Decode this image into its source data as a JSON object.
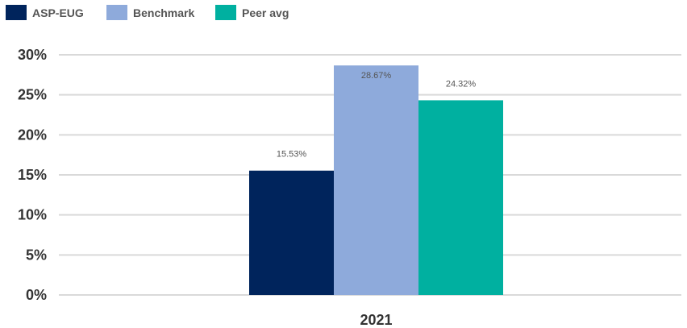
{
  "chart_data": {
    "type": "bar",
    "categories": [
      "2021"
    ],
    "series": [
      {
        "name": "ASP-EUG",
        "values": [
          15.53
        ],
        "color": "#00245c",
        "label": "15.53%"
      },
      {
        "name": "Benchmark",
        "values": [
          28.67
        ],
        "color": "#8eaadb",
        "label": "28.67%"
      },
      {
        "name": "Peer avg",
        "values": [
          24.32
        ],
        "color": "#00b0a0",
        "label": "24.32%"
      }
    ],
    "yticks": [
      "0%",
      "5%",
      "10%",
      "15%",
      "20%",
      "25%",
      "30%"
    ],
    "ylim": [
      0,
      30
    ],
    "ytick_values": [
      0,
      5,
      10,
      15,
      20,
      25,
      30
    ],
    "grid": true,
    "legend_position": "top-left"
  }
}
